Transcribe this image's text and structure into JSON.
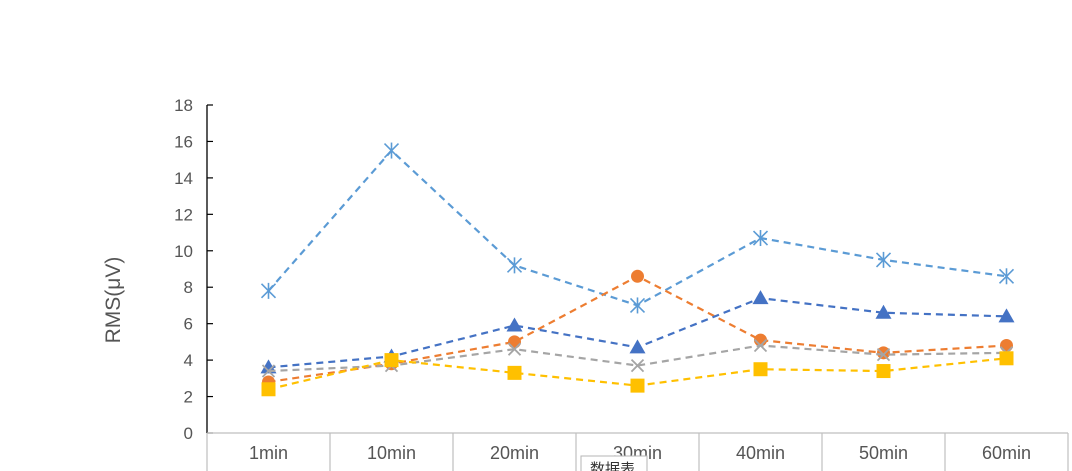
{
  "chart_data": {
    "type": "line",
    "title": "",
    "xlabel": "",
    "ylabel": "RMS(μV)",
    "ylim": [
      0,
      18
    ],
    "yticks": [
      0,
      2,
      4,
      6,
      8,
      10,
      12,
      14,
      16,
      18
    ],
    "categories": [
      "1min",
      "10min",
      "20min",
      "30min",
      "40min",
      "50min",
      "60min"
    ],
    "series": [
      {
        "name": "series-star",
        "marker": "star",
        "color": "#5B9BD5",
        "values": [
          7.8,
          15.5,
          9.2,
          7.0,
          10.7,
          9.5,
          8.6
        ]
      },
      {
        "name": "series-circle",
        "marker": "circle",
        "color": "#ED7D31",
        "values": [
          2.8,
          3.8,
          5.0,
          8.6,
          5.1,
          4.4,
          4.8
        ]
      },
      {
        "name": "series-triangle",
        "marker": "triangle",
        "color": "#4472C4",
        "values": [
          3.6,
          4.2,
          5.9,
          4.7,
          7.4,
          6.6,
          6.4
        ]
      },
      {
        "name": "series-x",
        "marker": "x",
        "color": "#A5A5A5",
        "values": [
          3.4,
          3.7,
          4.6,
          3.7,
          4.8,
          4.3,
          4.4
        ]
      },
      {
        "name": "series-square",
        "marker": "square",
        "color": "#FFC000",
        "values": [
          2.4,
          4.0,
          3.3,
          2.6,
          3.5,
          3.4,
          4.1
        ]
      }
    ]
  },
  "overlay": {
    "tooltip_label": "数据表"
  }
}
